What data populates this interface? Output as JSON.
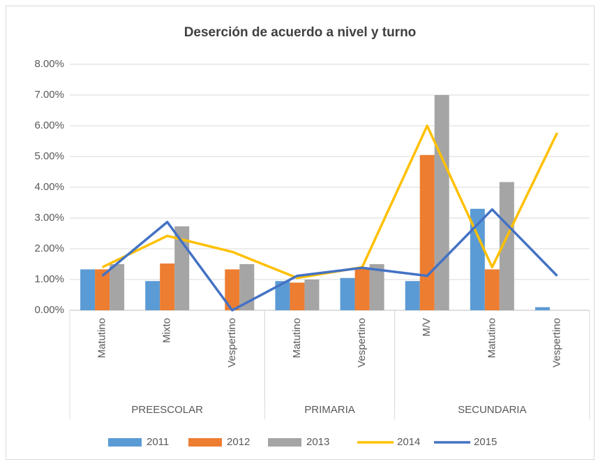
{
  "chart_data": {
    "type": "bar_line",
    "title": "Deserción de acuerdo a nivel y turno",
    "categories": [
      "Matutino",
      "Mixto",
      "Vespertino",
      "Matutino",
      "Vespertino",
      "M/V",
      "Matutino",
      "Vespertino"
    ],
    "groups": [
      {
        "label": "PREESCOLAR",
        "count": 3
      },
      {
        "label": "PRIMARIA",
        "count": 2
      },
      {
        "label": "SECUNDARIA",
        "count": 3
      }
    ],
    "series": [
      {
        "name": "2011",
        "type": "bar",
        "color": "#5b9bd5",
        "values": [
          1.33,
          0.95,
          0,
          0.95,
          1.05,
          0.95,
          3.3,
          0.1
        ]
      },
      {
        "name": "2012",
        "type": "bar",
        "color": "#ed7d31",
        "values": [
          1.33,
          1.52,
          1.33,
          0.9,
          1.35,
          5.05,
          1.33,
          0
        ]
      },
      {
        "name": "2013",
        "type": "bar",
        "color": "#a5a5a5",
        "values": [
          1.5,
          2.73,
          1.5,
          1.0,
          1.5,
          7.0,
          4.17,
          0
        ]
      },
      {
        "name": "2014",
        "type": "line",
        "color": "#ffc000",
        "values": [
          1.4,
          2.42,
          1.9,
          1.05,
          1.4,
          6.0,
          1.4,
          5.77
        ]
      },
      {
        "name": "2015",
        "type": "line",
        "color": "#4472c4",
        "values": [
          1.12,
          2.87,
          0,
          1.12,
          1.38,
          1.12,
          3.28,
          1.12
        ]
      }
    ],
    "ylim": [
      0,
      8
    ],
    "yticks": [
      {
        "value": 0,
        "label": "0.00%"
      },
      {
        "value": 1,
        "label": "1.00%"
      },
      {
        "value": 2,
        "label": "2.00%"
      },
      {
        "value": 3,
        "label": "3.00%"
      },
      {
        "value": 4,
        "label": "4.00%"
      },
      {
        "value": 5,
        "label": "5.00%"
      },
      {
        "value": 6,
        "label": "6.00%"
      },
      {
        "value": 7,
        "label": "7.00%"
      },
      {
        "value": 8,
        "label": "8.00%"
      }
    ],
    "grid": true,
    "legend": "bottom"
  }
}
